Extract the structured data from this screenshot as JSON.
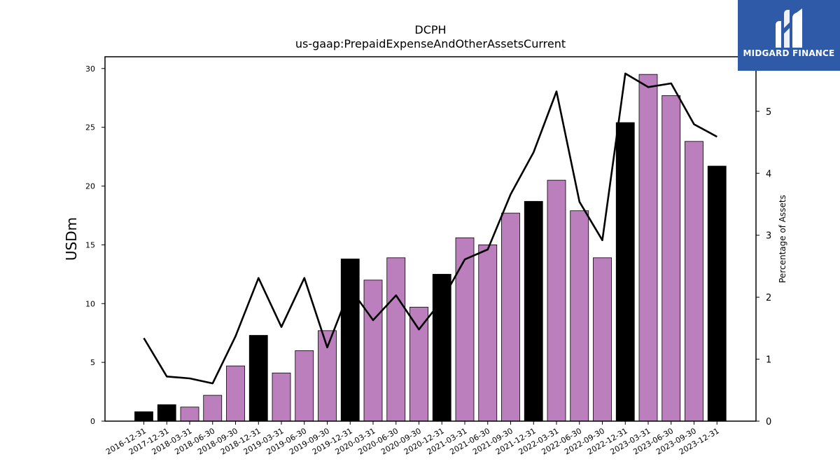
{
  "chart_data": {
    "type": "bar",
    "title": "DCPH",
    "subtitle": "us-gaap:PrepaidExpenseAndOtherAssetsCurrent",
    "ylabel": "USDm",
    "ylabel_right": "Percentage of Assets",
    "ylim": [
      0,
      31
    ],
    "ylim_right": [
      0,
      5.88
    ],
    "yticks": [
      "0",
      "5",
      "10",
      "15",
      "20",
      "25",
      "30"
    ],
    "yticks_right": [
      "0",
      "1",
      "2",
      "3",
      "4",
      "5"
    ],
    "grid": false,
    "categories": [
      "2016-12-31",
      "2017-12-31",
      "2018-03-31",
      "2018-06-30",
      "2018-09-30",
      "2018-12-31",
      "2019-03-31",
      "2019-06-30",
      "2019-09-30",
      "2019-12-31",
      "2020-03-31",
      "2020-06-30",
      "2020-09-30",
      "2020-12-31",
      "2021-03-31",
      "2021-06-30",
      "2021-09-30",
      "2021-12-31",
      "2022-03-31",
      "2022-06-30",
      "2022-09-30",
      "2022-12-31",
      "2023-03-31",
      "2023-06-30",
      "2023-09-30",
      "2023-12-31"
    ],
    "values": [
      0.8,
      1.4,
      1.2,
      2.2,
      4.7,
      7.3,
      4.1,
      6.0,
      7.7,
      13.8,
      12.0,
      13.9,
      9.7,
      12.5,
      15.6,
      15.0,
      17.7,
      18.7,
      20.5,
      17.9,
      13.9,
      25.4,
      29.5,
      27.7,
      23.8,
      21.7
    ],
    "year_end": [
      true,
      true,
      false,
      false,
      false,
      true,
      false,
      false,
      false,
      true,
      false,
      false,
      false,
      true,
      false,
      false,
      false,
      true,
      false,
      false,
      false,
      true,
      false,
      false,
      false,
      true
    ],
    "pct_of_assets": [
      1.34,
      0.72,
      0.69,
      0.61,
      1.37,
      2.31,
      1.52,
      2.31,
      1.19,
      2.14,
      1.63,
      2.03,
      1.48,
      1.95,
      2.61,
      2.77,
      3.66,
      4.34,
      5.32,
      3.54,
      2.92,
      5.61,
      5.39,
      5.45,
      4.79,
      4.59
    ],
    "colors": {
      "year_end": "#000000",
      "quarter": "#bc7fbd",
      "line": "#000000"
    }
  },
  "logo": {
    "text": "MIDGARD FINANCE",
    "background": "#2f5aa8"
  }
}
